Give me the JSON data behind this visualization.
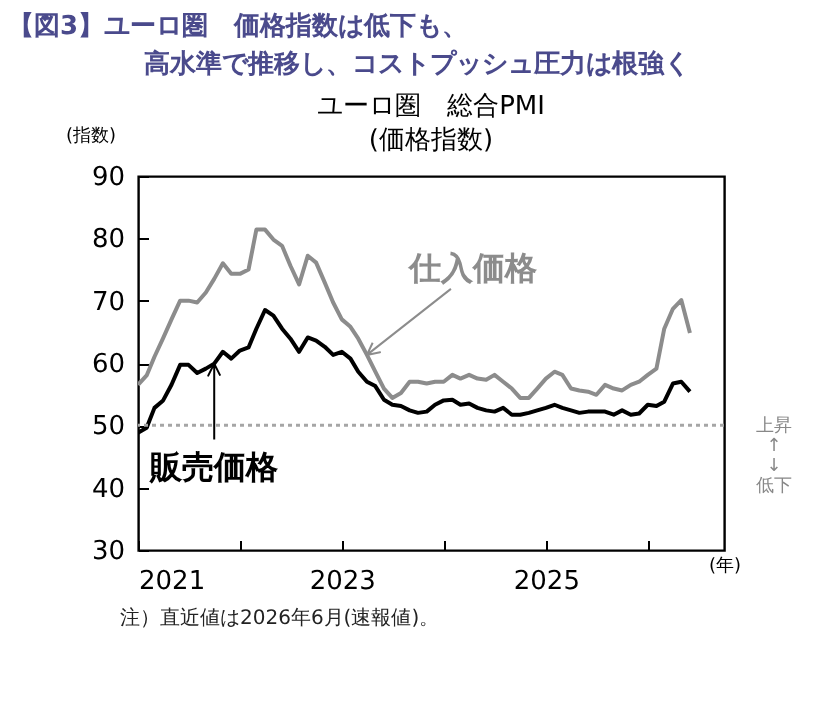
{
  "chart_data": {
    "type": "line",
    "title": "【図3】ユーロ圏　価格指数は低下も、高水準で推移し、コストプッシュ圧力は根強く",
    "subtitle": "ユーロ圏　総合PMI\n(価格指数)",
    "ylabel": "(指数)",
    "xlabel": "(年)",
    "x": [
      "2021-01",
      "2021-02",
      "2021-03",
      "2021-04",
      "2021-05",
      "2021-06",
      "2021-07",
      "2021-08",
      "2021-09",
      "2021-10",
      "2021-11",
      "2021-12",
      "2022-01",
      "2022-02",
      "2022-03",
      "2022-04",
      "2022-05",
      "2022-06",
      "2022-07",
      "2022-08",
      "2022-09",
      "2022-10",
      "2022-11",
      "2022-12",
      "2023-01",
      "2023-02",
      "2023-03",
      "2023-04",
      "2023-05",
      "2023-06",
      "2023-07",
      "2023-08",
      "2023-09",
      "2023-10",
      "2023-11",
      "2023-12",
      "2024-01",
      "2024-02",
      "2024-03",
      "2024-04",
      "2024-05",
      "2024-06",
      "2024-07",
      "2024-08",
      "2024-09",
      "2024-10",
      "2024-11",
      "2024-12",
      "2025-01",
      "2025-02",
      "2025-03",
      "2025-04",
      "2025-05",
      "2025-06",
      "2025-07",
      "2025-08",
      "2025-09",
      "2025-10",
      "2025-11",
      "2025-12",
      "2026-01",
      "2026-02",
      "2026-03",
      "2026-04",
      "2026-05",
      "2026-06"
    ],
    "series": [
      {
        "name": "仕入価格",
        "color": "#8c8c8c",
        "values": [
          56.5,
          58,
          61,
          64,
          67,
          70,
          70,
          69.7,
          71.3,
          73.5,
          76,
          74.3,
          74.3,
          75,
          81.4,
          81.4,
          79.8,
          78.8,
          75.6,
          72.6,
          77.2,
          76.1,
          72.9,
          69.7,
          67,
          65.8,
          63.9,
          61.3,
          58.6,
          55.9,
          54.4,
          55.2,
          57,
          57,
          56.7,
          57,
          57,
          58.1,
          57.5,
          58.1,
          57.5,
          57.3,
          58.1,
          57,
          55.9,
          54.4,
          54.4,
          55.9,
          57.5,
          58.6,
          58.1,
          55.9,
          55.6,
          55.4,
          54.9,
          56.5,
          55.9,
          55.6,
          56.5,
          57,
          58.1,
          59.1,
          65.5,
          68.7,
          70.1,
          64.8
        ]
      },
      {
        "name": "販売価格",
        "color": "#000000",
        "values": [
          48.8,
          49.6,
          52.8,
          54,
          56.5,
          59.7,
          59.7,
          58.4,
          59.1,
          59.9,
          61.8,
          60.7,
          62,
          62.5,
          65.5,
          68.5,
          67.6,
          65.5,
          63.9,
          61.8,
          64.1,
          63.6,
          62.6,
          61.3,
          61.8,
          60.7,
          58.6,
          57,
          56.3,
          54.1,
          53.3,
          53.1,
          52.4,
          52,
          52.2,
          53.3,
          54,
          54.1,
          53.3,
          53.5,
          52.8,
          52.4,
          52.2,
          52.8,
          51.7,
          51.7,
          52,
          52.4,
          52.8,
          53.3,
          52.8,
          52.4,
          52,
          52.2,
          52.2,
          52.2,
          51.7,
          52.4,
          51.7,
          51.9,
          53.3,
          53.1,
          53.8,
          56.7,
          57,
          55.4
        ]
      }
    ],
    "xlim": [
      "2021-01",
      "2026-10"
    ],
    "xticks": [
      "2021",
      {
        "value": "2022",
        "label": null
      },
      "2023",
      {
        "value": "2024",
        "label": null
      },
      "2025",
      {
        "value": "2026",
        "label": null
      }
    ],
    "ylim": [
      30,
      90
    ],
    "yticks": [
      30,
      40,
      50,
      60,
      70,
      80,
      90
    ],
    "ref_lines": [
      {
        "axis": "y",
        "value": 50,
        "label": "上昇\n↑\n↓\n低下",
        "color": "#a6a6a6",
        "line_style": "dotted"
      }
    ],
    "annotations": [
      "注）直近値は2026年6月(速報値)。"
    ]
  }
}
